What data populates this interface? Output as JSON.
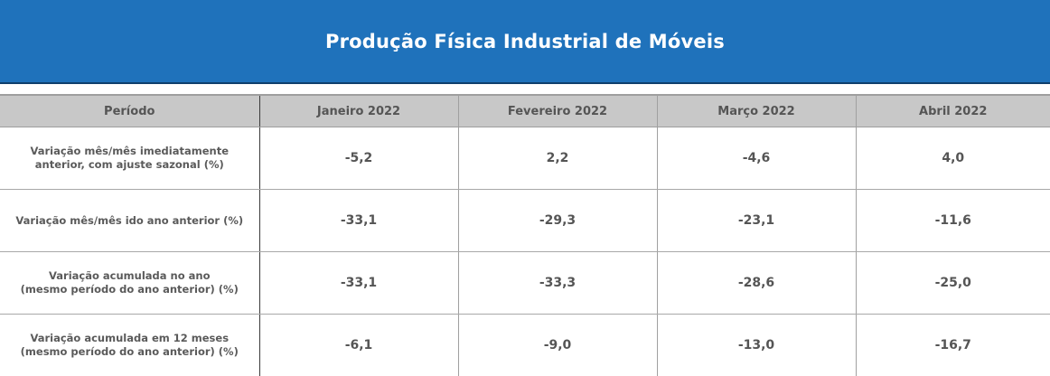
{
  "chart_data": {
    "type": "table",
    "title": "Produção Física Industrial de Móveis",
    "header_label": "Período",
    "columns": [
      "Janeiro 2022",
      "Fevereiro 2022",
      "Março 2022",
      "Abril 2022"
    ],
    "rows": [
      {
        "label": "Variação mês/mês imediatamente\nanterior, com ajuste sazonal (%)",
        "values": [
          "-5,2",
          "2,2",
          "-4,6",
          "4,0"
        ]
      },
      {
        "label": "Variação mês/mês ido ano anterior (%)",
        "values": [
          "-33,1",
          "-29,3",
          "-23,1",
          "-11,6"
        ]
      },
      {
        "label": "Variação acumulada no ano\n(mesmo período do ano anterior) (%)",
        "values": [
          "-33,1",
          "-33,3",
          "-28,6",
          "-25,0"
        ]
      },
      {
        "label": "Variação acumulada em 12 meses\n(mesmo período do ano anterior) (%)",
        "values": [
          "-6,1",
          "-9,0",
          "-13,0",
          "-16,7"
        ]
      }
    ]
  },
  "colors": {
    "banner": "#1f72bb",
    "header_bg": "#c8c8c8",
    "text": "#555555"
  }
}
